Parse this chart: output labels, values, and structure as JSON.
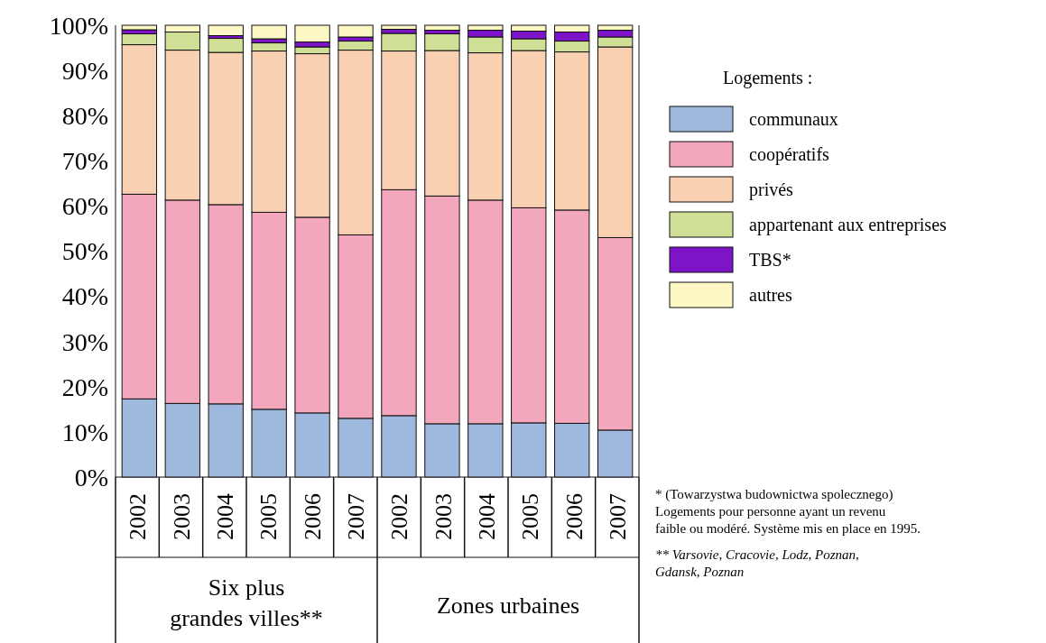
{
  "chart_data": {
    "type": "bar",
    "stacked": true,
    "legend": "right",
    "legend_title": "Logements :",
    "categories": [
      "2002",
      "2003",
      "2004",
      "2005",
      "2006",
      "2007",
      "2002",
      "2003",
      "2004",
      "2005",
      "2006",
      "2007"
    ],
    "series": [
      {
        "name": "communaux",
        "color": "#9fb8de",
        "values": [
          17.3,
          16.3,
          16.2,
          15.0,
          14.2,
          13.0,
          13.6,
          11.8,
          11.8,
          12.0,
          11.9,
          10.4
        ]
      },
      {
        "name": "coopératifs",
        "color": "#f2a7bd",
        "values": [
          45.3,
          45.0,
          44.1,
          43.6,
          43.3,
          40.6,
          50.0,
          50.4,
          49.5,
          47.6,
          47.2,
          42.6
        ]
      },
      {
        "name": "privés",
        "color": "#f9d0b2",
        "values": [
          33.1,
          33.2,
          33.7,
          35.7,
          36.2,
          40.9,
          30.7,
          32.2,
          32.6,
          34.8,
          35.0,
          42.2
        ]
      },
      {
        "name": "appartenant aux entreprises",
        "color": "#cfdf96",
        "values": [
          2.4,
          4.0,
          3.1,
          1.8,
          1.5,
          2.0,
          3.9,
          3.7,
          3.5,
          2.6,
          2.4,
          2.2
        ]
      },
      {
        "name": "TBS*",
        "color": "#7d14c8",
        "values": [
          0.9,
          0,
          0.6,
          0.9,
          1.1,
          0.9,
          0.9,
          0.8,
          1.5,
          1.7,
          2.0,
          1.5
        ]
      },
      {
        "name": "autres",
        "color": "#fdf7c6",
        "values": [
          1.0,
          1.5,
          2.3,
          3.0,
          3.7,
          2.6,
          0.9,
          1.1,
          1.1,
          1.3,
          1.5,
          1.1
        ]
      }
    ],
    "ylim": [
      0,
      100
    ],
    "yticks": [
      {
        "value": 0,
        "label": "0%"
      },
      {
        "value": 10,
        "label": "10%"
      },
      {
        "value": 20,
        "label": "20%"
      },
      {
        "value": 30,
        "label": "30%"
      },
      {
        "value": 40,
        "label": "40%"
      },
      {
        "value": 50,
        "label": "50%"
      },
      {
        "value": 60,
        "label": "60%"
      },
      {
        "value": 70,
        "label": "70%"
      },
      {
        "value": 80,
        "label": "80%"
      },
      {
        "value": 90,
        "label": "90%"
      },
      {
        "value": 100,
        "label": "100%"
      }
    ],
    "annotations": [
      "Six plus\ngrandes villes**",
      "Zones urbaines",
      "* (Towarzystwa budownictwa spolecznego)\nLogements pour personne ayant un revenu\nfaible ou modéré. Système mis en place en 1995.",
      "** Varsovie, Cracovie, Lodz, Poznan,\nGdansk, Poznan"
    ]
  }
}
